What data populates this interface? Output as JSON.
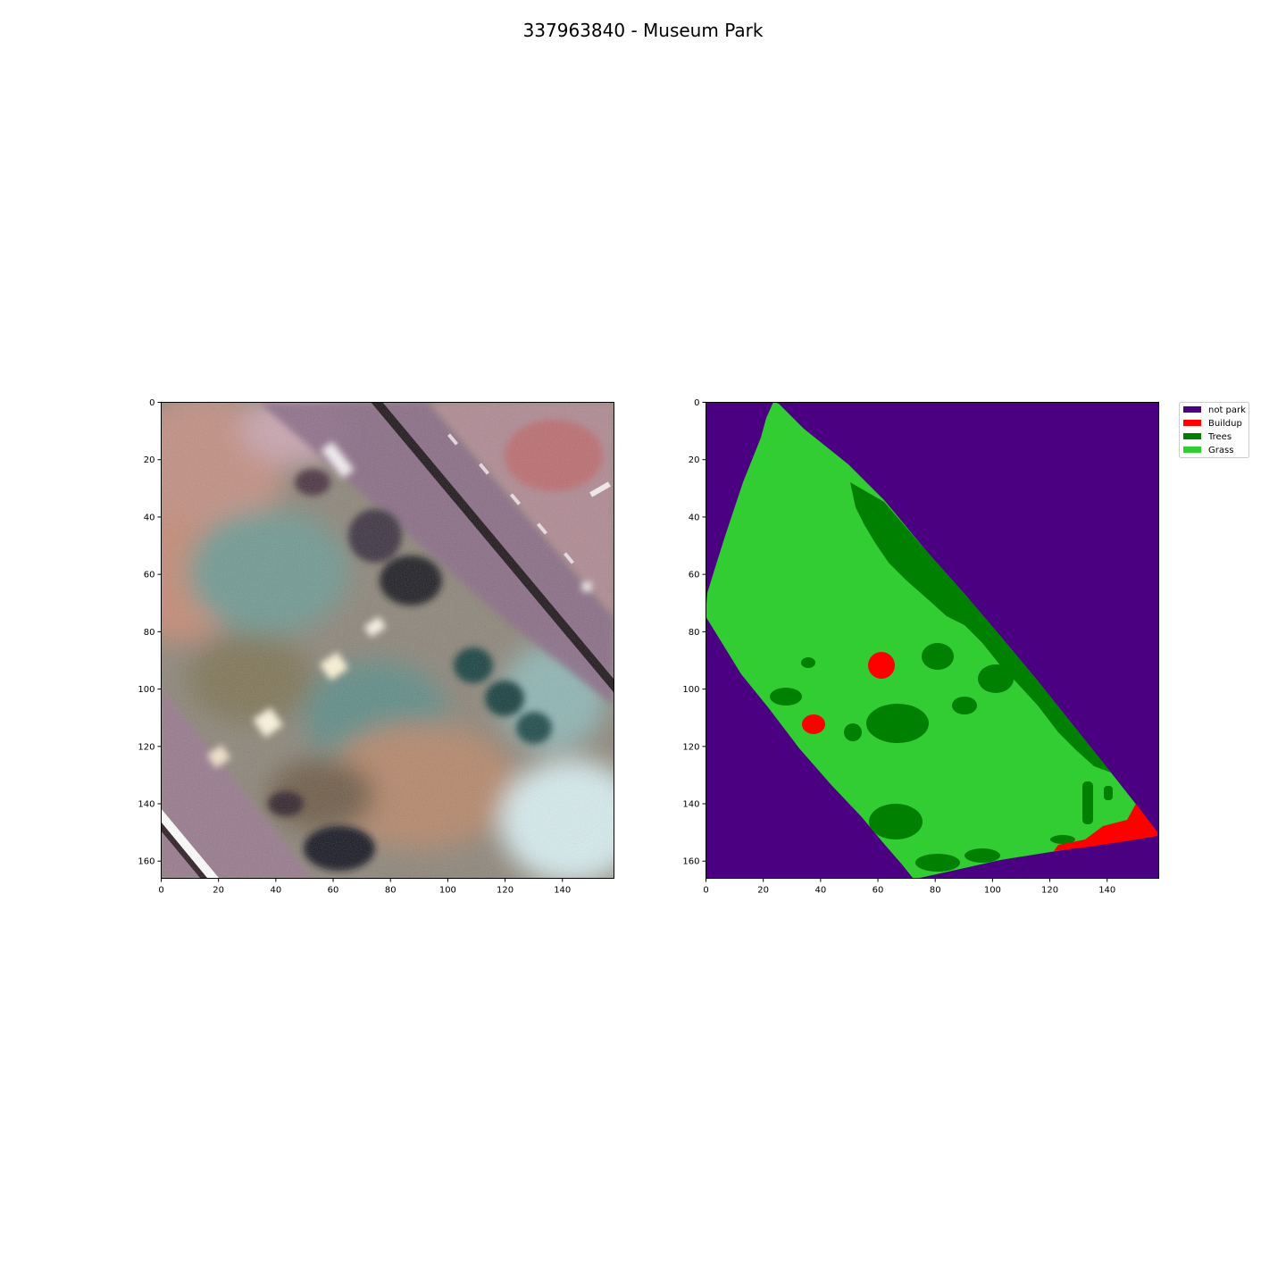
{
  "title": "337963840 - Museum Park",
  "chart_data": [
    {
      "type": "heatmap",
      "image": "satellite-rgb",
      "xlim": [
        0,
        158
      ],
      "ylim": [
        166,
        0
      ],
      "xticks": [
        0,
        20,
        40,
        60,
        80,
        100,
        120,
        140
      ],
      "yticks": [
        0,
        20,
        40,
        60,
        80,
        100,
        120,
        140,
        160
      ],
      "grid": false
    },
    {
      "type": "heatmap",
      "image": "park-classification",
      "xlim": [
        0,
        158
      ],
      "ylim": [
        166,
        0
      ],
      "xticks": [
        0,
        20,
        40,
        60,
        80,
        100,
        120,
        140
      ],
      "yticks": [
        0,
        20,
        40,
        60,
        80,
        100,
        120,
        140,
        160
      ],
      "grid": false,
      "legend_position": "outside-top-right",
      "classes": [
        {
          "label": "not park",
          "color": "#4b0082"
        },
        {
          "label": "Buildup",
          "color": "#ff0000"
        },
        {
          "label": "Trees",
          "color": "#008000"
        },
        {
          "label": "Grass",
          "color": "#32cd32"
        }
      ]
    }
  ]
}
